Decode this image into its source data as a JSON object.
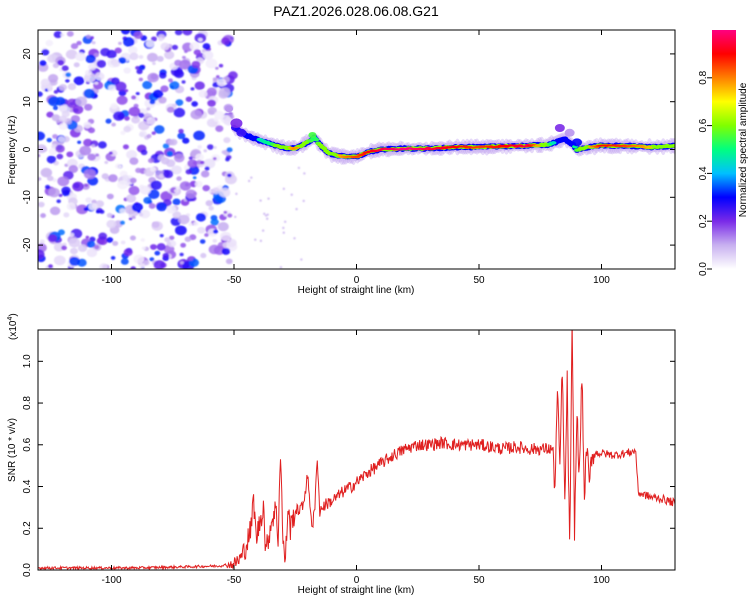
{
  "title": "PAZ1.2026.028.06.08.G21",
  "chart_data": [
    {
      "type": "heatmap",
      "xlabel": "Height of straight line (km)",
      "ylabel": "Frequency (Hz)",
      "xlim": [
        -130,
        130
      ],
      "ylim": [
        -25,
        25
      ],
      "xticks": [
        -100,
        -50,
        0,
        50,
        100
      ],
      "xtick_labels": [
        "-100",
        "-50",
        "0",
        "50",
        "100"
      ],
      "yticks": [
        -20,
        -10,
        0,
        10,
        20
      ],
      "ytick_labels": [
        "-20",
        "-10",
        "0",
        "10",
        "20"
      ],
      "colorbar": {
        "label": "Normalized spectral amplitude",
        "range": [
          0,
          1
        ],
        "ticks": [
          0.0,
          0.2,
          0.4,
          0.6,
          0.8
        ],
        "tick_labels": [
          "0.0",
          "0.2",
          "0.4",
          "0.6",
          "0.8"
        ],
        "stops": [
          "#ffffff",
          "#c8b0f0",
          "#7a2ae8",
          "#0000ff",
          "#00c0ff",
          "#00ff80",
          "#80ff00",
          "#ffff00",
          "#ff8000",
          "#ff0000",
          "#ff0080"
        ]
      },
      "noise_region": {
        "x_from": -130,
        "x_to": -50,
        "freq_from": -25,
        "freq_to": 25
      },
      "ridge_x": [
        -50,
        -45,
        -40,
        -35,
        -30,
        -25,
        -20,
        -17,
        -15,
        -12,
        -10,
        -5,
        0,
        5,
        10,
        20,
        30,
        40,
        50,
        60,
        70,
        78,
        82,
        85,
        88,
        90,
        95,
        100,
        110,
        120,
        130
      ],
      "ridge_freq": [
        4.5,
        3.0,
        2.0,
        1.2,
        0.4,
        0.2,
        1.5,
        2.5,
        1.0,
        -0.5,
        -1.0,
        -1.5,
        -1.5,
        -0.5,
        0.0,
        0.2,
        0.2,
        0.5,
        0.5,
        0.7,
        0.8,
        1.0,
        1.6,
        2.2,
        1.2,
        0.0,
        0.5,
        0.8,
        0.8,
        0.5,
        0.8
      ],
      "ridge_amplitude": [
        0.25,
        0.35,
        0.45,
        0.5,
        0.7,
        0.8,
        0.6,
        0.5,
        0.6,
        0.65,
        0.7,
        0.8,
        0.85,
        0.9,
        0.95,
        1.0,
        0.95,
        0.9,
        0.85,
        0.9,
        0.95,
        0.6,
        0.35,
        0.3,
        0.4,
        0.55,
        0.75,
        0.9,
        0.85,
        0.75,
        0.7
      ]
    },
    {
      "type": "line",
      "xlabel": "Height of straight line (km)",
      "ylabel": "SNR (10 * v/v)",
      "y_scale_label": "(x10",
      "y_scale_exp": "4",
      "xlim": [
        -130,
        130
      ],
      "ylim": [
        0,
        1.15
      ],
      "xticks": [
        -100,
        -50,
        0,
        50,
        100
      ],
      "xtick_labels": [
        "-100",
        "-50",
        "0",
        "50",
        "100"
      ],
      "yticks": [
        0,
        0.2,
        0.4,
        0.6,
        0.8,
        1.0
      ],
      "ytick_labels": [
        "0.0",
        "0.2",
        "0.4",
        "0.6",
        "0.8",
        "1.0"
      ],
      "color": "#e02020",
      "series": [
        {
          "name": "SNR",
          "x": [
            -130,
            -110,
            -90,
            -70,
            -55,
            -50,
            -47,
            -45,
            -43,
            -42,
            -41,
            -39,
            -38,
            -37,
            -35,
            -33,
            -32,
            -31,
            -30,
            -29,
            -28,
            -27,
            -26,
            -25,
            -22,
            -20,
            -18,
            -17,
            -16,
            -15,
            -14,
            -12,
            -10,
            -8,
            -5,
            -2,
            0,
            5,
            10,
            15,
            20,
            25,
            30,
            35,
            40,
            45,
            50,
            55,
            60,
            65,
            70,
            75,
            80,
            81,
            82,
            83,
            84,
            85,
            86,
            87,
            88,
            89,
            90,
            91,
            92,
            93,
            94,
            95,
            96,
            98,
            100,
            105,
            110,
            114,
            115,
            120,
            125,
            130
          ],
          "y": [
            0.01,
            0.01,
            0.01,
            0.015,
            0.02,
            0.03,
            0.06,
            0.12,
            0.2,
            0.35,
            0.15,
            0.25,
            0.32,
            0.08,
            0.22,
            0.3,
            0.15,
            0.58,
            0.12,
            0.05,
            0.3,
            0.2,
            0.25,
            0.28,
            0.3,
            0.45,
            0.2,
            0.3,
            0.55,
            0.28,
            0.3,
            0.32,
            0.33,
            0.35,
            0.38,
            0.4,
            0.42,
            0.47,
            0.51,
            0.55,
            0.58,
            0.6,
            0.6,
            0.61,
            0.6,
            0.6,
            0.6,
            0.59,
            0.58,
            0.59,
            0.58,
            0.58,
            0.58,
            0.4,
            0.85,
            0.5,
            0.98,
            0.3,
            0.9,
            0.1,
            1.15,
            0.2,
            0.75,
            0.45,
            0.95,
            0.35,
            0.6,
            0.4,
            0.55,
            0.56,
            0.56,
            0.55,
            0.56,
            0.57,
            0.37,
            0.35,
            0.34,
            0.32
          ]
        }
      ]
    }
  ]
}
